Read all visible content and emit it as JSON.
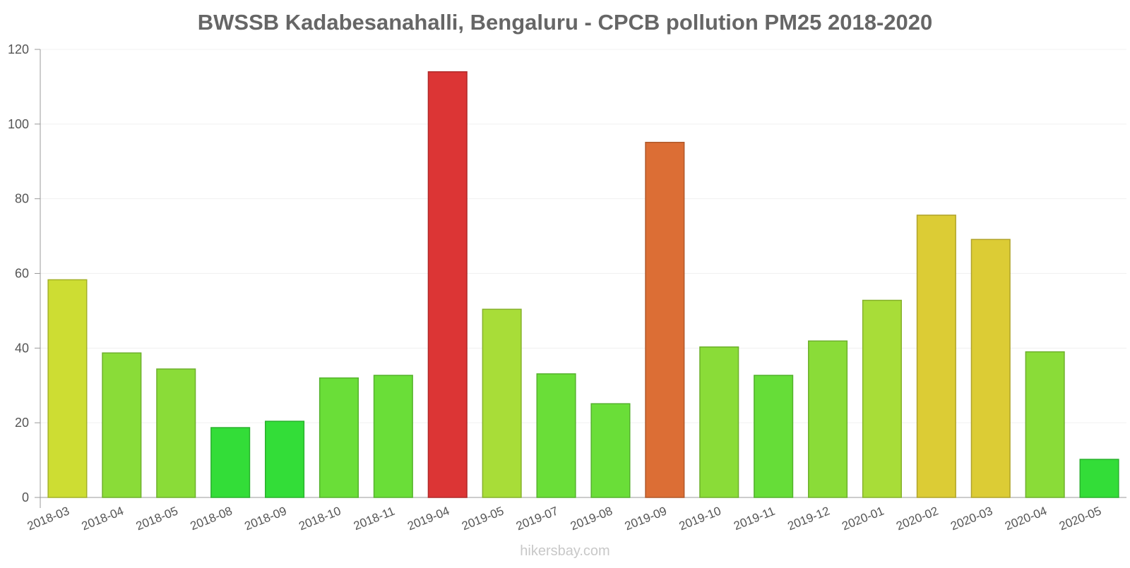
{
  "chart_data": {
    "type": "bar",
    "title": "BWSSB Kadabesanahalli, Bengaluru - CPCB pollution PM25 2018-2020",
    "xlabel": "",
    "ylabel": "",
    "ylim": [
      0,
      120
    ],
    "yticks": [
      0,
      20,
      40,
      60,
      80,
      100,
      120
    ],
    "grid": true,
    "categories": [
      "2018-03",
      "2018-04",
      "2018-05",
      "2018-08",
      "2018-09",
      "2018-10",
      "2018-11",
      "2019-04",
      "2019-05",
      "2019-07",
      "2019-08",
      "2019-09",
      "2019-10",
      "2019-11",
      "2019-12",
      "2020-01",
      "2020-02",
      "2020-03",
      "2020-04",
      "2020-05"
    ],
    "values": [
      58.3,
      38.7,
      34.4,
      18.7,
      20.4,
      32.0,
      32.7,
      114.0,
      50.4,
      33.1,
      25.1,
      95.1,
      40.3,
      32.7,
      41.9,
      52.8,
      75.6,
      69.1,
      39.0,
      10.2
    ],
    "colors": [
      "#cddd33",
      "#8adc38",
      "#8adc38",
      "#33dd38",
      "#33dd38",
      "#6ade38",
      "#6ade38",
      "#dc3535",
      "#a8dd38",
      "#6ade38",
      "#6ade38",
      "#dc6e35",
      "#8adc38",
      "#66dd38",
      "#8adc38",
      "#a8dd38",
      "#dccc35",
      "#dccc35",
      "#8adc38",
      "#33dd38"
    ]
  },
  "watermark": "hikersbay.com"
}
